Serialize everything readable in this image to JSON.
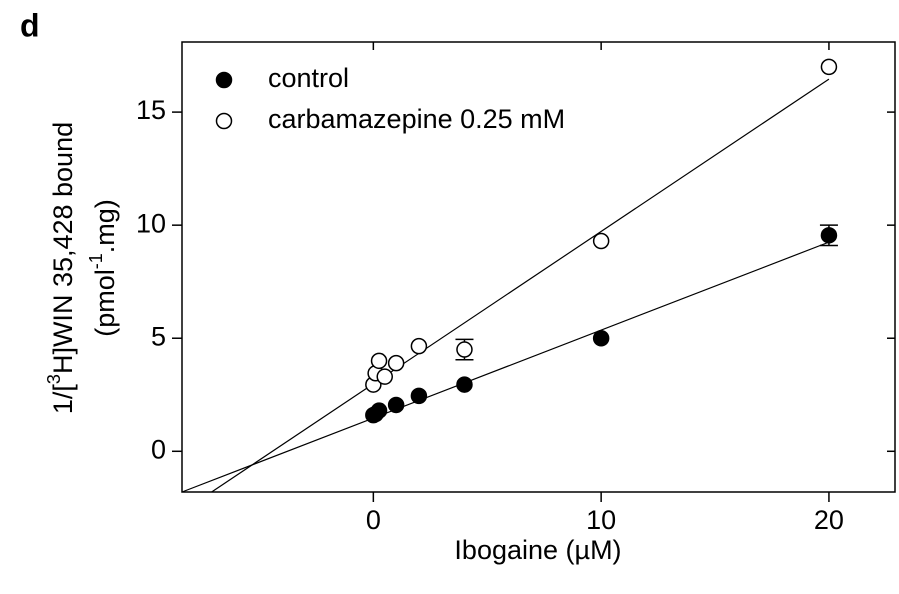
{
  "chart_data": {
    "type": "scatter",
    "panel_label": "d",
    "xlabel": "Ibogaine (µM)",
    "ylabel_lines": [
      [
        "1/[",
        "3",
        "H]WIN 35,428 bound"
      ],
      [
        "(pmol",
        "-1",
        ".mg)"
      ]
    ],
    "xlim": [
      -8.4,
      22.9
    ],
    "ylim": [
      -1.8,
      18.1
    ],
    "xticks": [
      0,
      10,
      20
    ],
    "yticks": [
      0,
      5,
      10,
      15
    ],
    "legend": "top-left",
    "series": [
      {
        "name": "control",
        "color": "#000000",
        "filled": true,
        "x": [
          0,
          0.1,
          0.25,
          1,
          2,
          4,
          10,
          20
        ],
        "values": [
          1.6,
          1.65,
          1.8,
          2.05,
          2.45,
          2.95,
          5.0,
          9.55
        ],
        "errors": [
          null,
          null,
          null,
          null,
          null,
          null,
          null,
          0.45
        ],
        "fit_x": [
          -8.4,
          20
        ],
        "fit_y": [
          -1.8,
          9.25
        ]
      },
      {
        "name": "carbamazepine 0.25 mM",
        "color": "#000000",
        "filled": false,
        "x": [
          0,
          0.1,
          0.25,
          0.5,
          1,
          2,
          4,
          10,
          20
        ],
        "values": [
          2.95,
          3.45,
          4.0,
          3.3,
          3.9,
          4.65,
          4.5,
          9.3,
          17.0
        ],
        "errors": [
          null,
          null,
          null,
          null,
          null,
          null,
          0.45,
          null,
          null
        ],
        "fit_x": [
          -7.1,
          20
        ],
        "fit_y": [
          -1.8,
          16.46
        ]
      }
    ]
  }
}
